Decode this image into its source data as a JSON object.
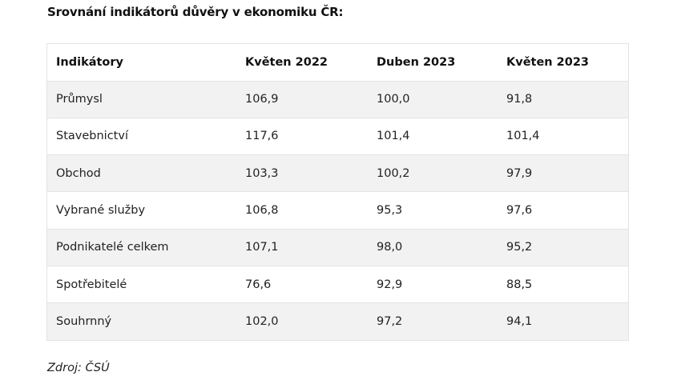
{
  "title": "Srovnání indikátorů důvěry v ekonomiku ČR:",
  "table": {
    "headers": [
      "Indikátory",
      "Květen 2022",
      "Duben 2023",
      "Květen 2023"
    ],
    "rows": [
      [
        "Průmysl",
        "106,9",
        "100,0",
        "91,8"
      ],
      [
        "Stavebnictví",
        "117,6",
        "101,4",
        "101,4"
      ],
      [
        "Obchod",
        "103,3",
        "100,2",
        "97,9"
      ],
      [
        "Vybrané služby",
        "106,8",
        "95,3",
        "97,6"
      ],
      [
        "Podnikatelé celkem",
        "107,1",
        "98,0",
        "95,2"
      ],
      [
        "Spotřebitelé",
        "76,6",
        "92,9",
        "88,5"
      ],
      [
        "Souhrnný",
        "102,0",
        "97,2",
        "94,1"
      ]
    ]
  },
  "source": "Zdroj: ČSÚ"
}
